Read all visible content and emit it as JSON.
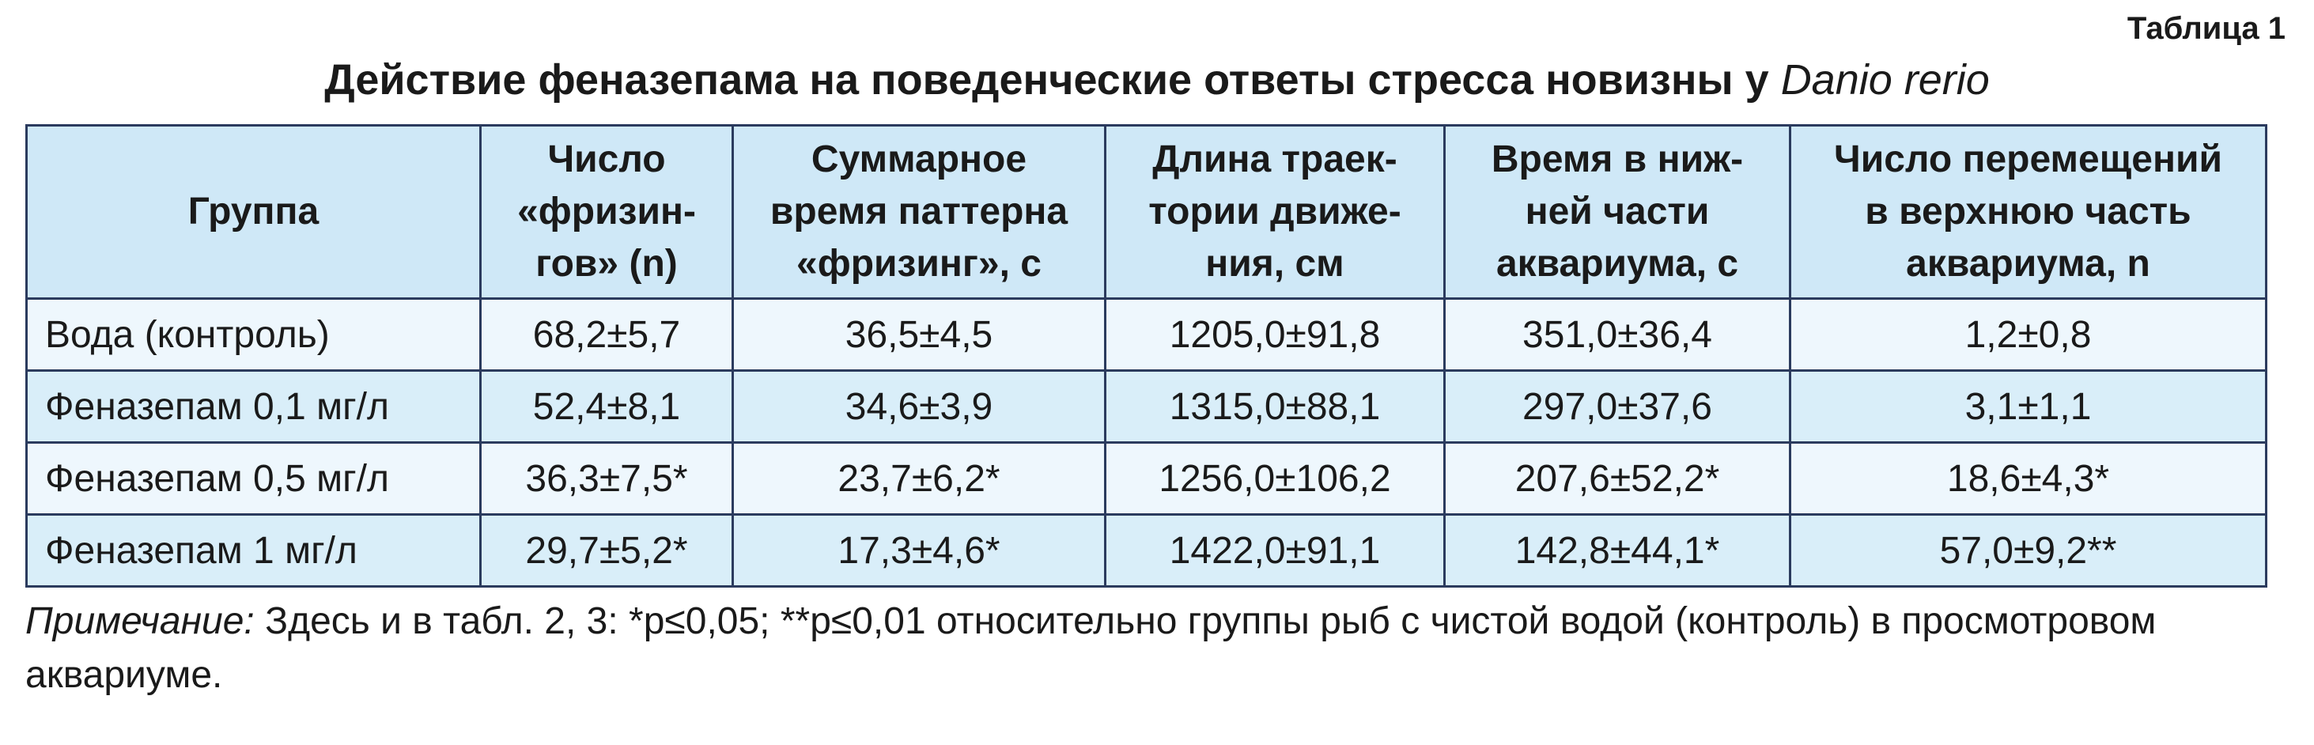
{
  "header": {
    "table_label": "Таблица 1",
    "title": "Действие феназепама на поведенческие ответы стресса новизны у",
    "species": "Danio rerio"
  },
  "table": {
    "columns": [
      [
        "Группа"
      ],
      [
        "Число",
        "«фризин-",
        "гов» (n)"
      ],
      [
        "Суммарное",
        "время паттерна",
        "«фризинг», с"
      ],
      [
        "Длина траек-",
        "тории движе-",
        "ния, см"
      ],
      [
        "Время в ниж-",
        "ней части",
        "аквариума, с"
      ],
      [
        "Число перемещений",
        "в верхнюю часть",
        "аквариума, n"
      ]
    ],
    "rows": [
      [
        "Вода (контроль)",
        "68,2±5,7",
        "36,5±4,5",
        "1205,0±91,8",
        "351,0±36,4",
        "1,2±0,8"
      ],
      [
        "Феназепам 0,1 мг/л",
        "52,4±8,1",
        "34,6±3,9",
        "1315,0±88,1",
        "297,0±37,6",
        "3,1±1,1"
      ],
      [
        "Феназепам 0,5 мг/л",
        "36,3±7,5*",
        "23,7±6,2*",
        "1256,0±106,2",
        "207,6±52,2*",
        "18,6±4,3*"
      ],
      [
        "Феназепам 1 мг/л",
        "29,7±5,2*",
        "17,3±4,6*",
        "1422,0±91,1",
        "142,8±44,1*",
        "57,0±9,2**"
      ]
    ]
  },
  "note": {
    "label": "Примечание:",
    "text": "Здесь и в табл. 2, 3: *p≤0,05; **p≤0,01 относительно группы рыб с чистой водой (контроль) в просмотровом аквариуме."
  }
}
